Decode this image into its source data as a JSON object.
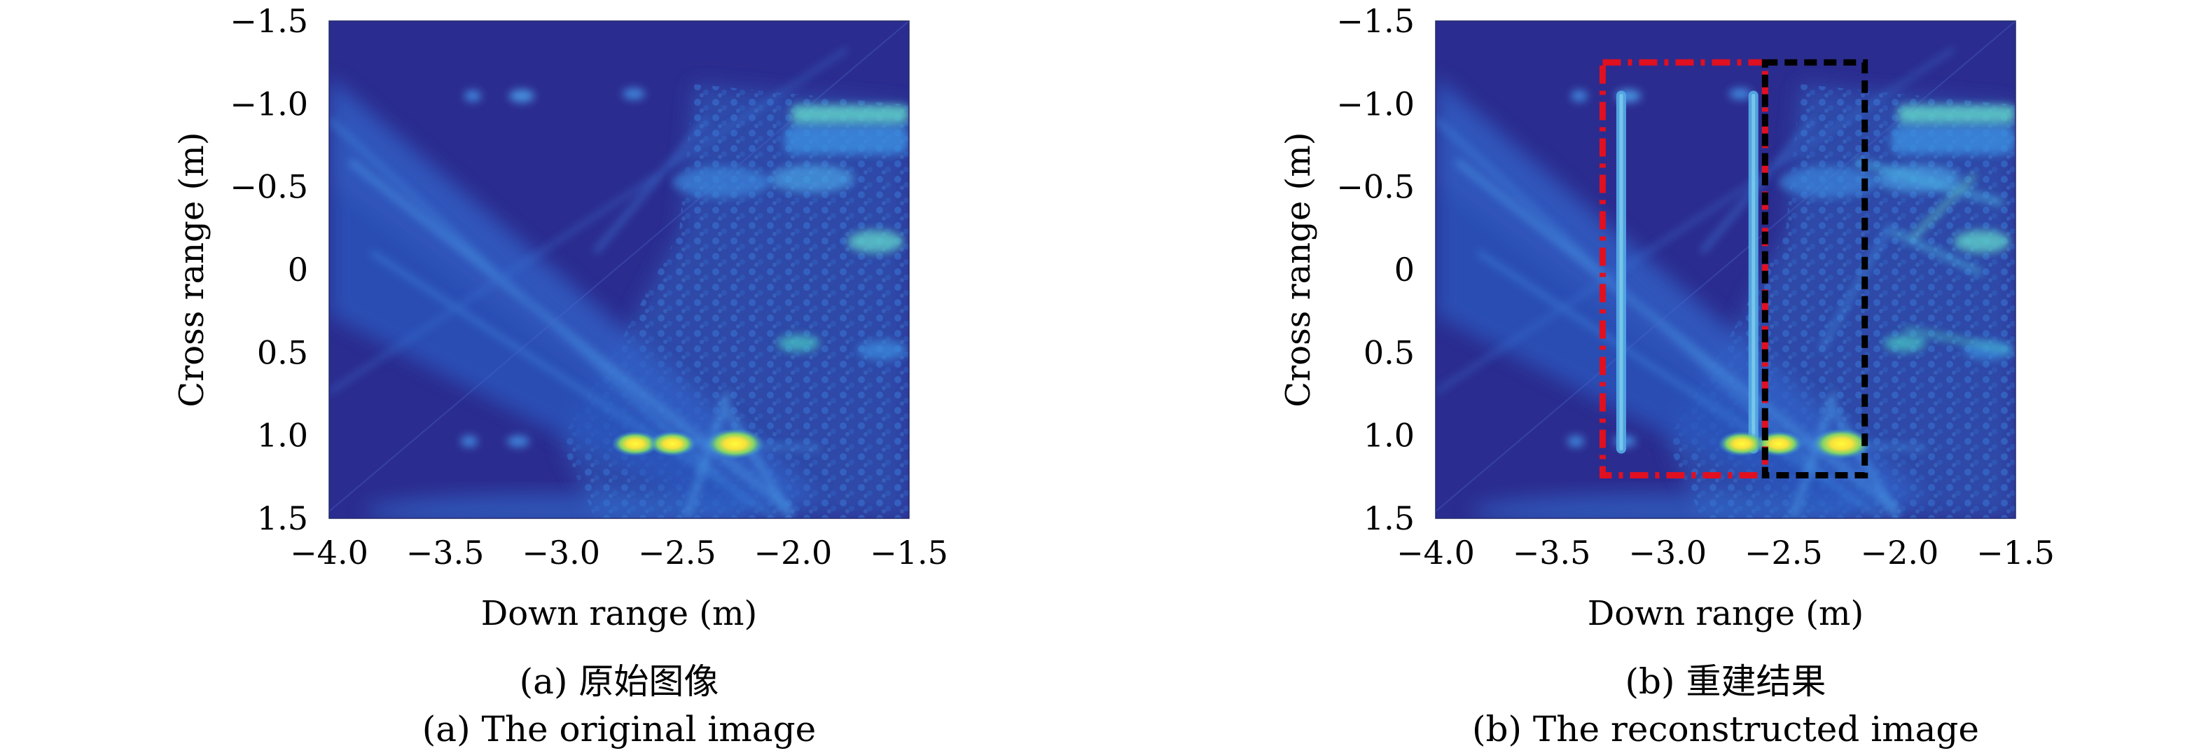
{
  "figure": {
    "panels": [
      {
        "caption_zh": "(a) 原始图像",
        "caption_en": "(a) The original image"
      },
      {
        "caption_zh": "(b) 重建结果",
        "caption_en": "(b) The reconstructed image"
      }
    ]
  },
  "chart_data": [
    {
      "type": "heatmap",
      "title": "",
      "xlabel": "Down range (m)",
      "ylabel": "Cross range (m)",
      "xlim": [
        -4.0,
        -1.5
      ],
      "ylim": [
        -1.5,
        1.5
      ],
      "y_axis_direction": "reversed (-1.5 at top, 1.5 at bottom)",
      "x_ticks": [
        -4.0,
        -3.5,
        -3.0,
        -2.5,
        -2.0,
        -1.5
      ],
      "x_tick_labels": [
        "−4.0",
        "−3.5",
        "−3.0",
        "−2.5",
        "−2.0",
        "−1.5"
      ],
      "y_ticks": [
        -1.5,
        -1.0,
        -0.5,
        0,
        0.5,
        1.0,
        1.5
      ],
      "y_tick_labels": [
        "−1.5",
        "−1.0",
        "−0.5",
        "0",
        "0.5",
        "1.0",
        "1.5"
      ],
      "colormap": "parula",
      "colors": {
        "background": "#2b2c8f",
        "mid": "#1f7fd6",
        "high": "#f9e23a"
      },
      "bright_targets": [
        {
          "x": -2.68,
          "y": 1.05
        },
        {
          "x": -2.52,
          "y": 1.05
        },
        {
          "x": -2.25,
          "y": 1.05
        }
      ],
      "annotations": []
    },
    {
      "type": "heatmap",
      "title": "",
      "xlabel": "Down range (m)",
      "ylabel": "Cross range (m)",
      "xlim": [
        -4.0,
        -1.5
      ],
      "ylim": [
        -1.5,
        1.5
      ],
      "y_axis_direction": "reversed (-1.5 at top, 1.5 at bottom)",
      "x_ticks": [
        -4.0,
        -3.5,
        -3.0,
        -2.5,
        -2.0,
        -1.5
      ],
      "x_tick_labels": [
        "−4.0",
        "−3.5",
        "−3.0",
        "−2.5",
        "−2.0",
        "−1.5"
      ],
      "y_ticks": [
        -1.5,
        -1.0,
        -0.5,
        0,
        0.5,
        1.0,
        1.5
      ],
      "y_tick_labels": [
        "−1.5",
        "−1.0",
        "−0.5",
        "0",
        "0.5",
        "1.0",
        "1.5"
      ],
      "colormap": "parula",
      "colors": {
        "background": "#2b2c8f",
        "mid": "#1f7fd6",
        "high": "#f9e23a"
      },
      "bright_targets": [
        {
          "x": -2.68,
          "y": 1.05
        },
        {
          "x": -2.52,
          "y": 1.05
        },
        {
          "x": -2.25,
          "y": 1.05
        }
      ],
      "reconstructed_lines": [
        {
          "x": -3.2,
          "y_from": -1.05,
          "y_to": 1.08
        },
        {
          "x": -2.63,
          "y_from": -1.05,
          "y_to": 1.08
        }
      ],
      "annotations": [
        {
          "shape": "rectangle",
          "style": "dash-dot",
          "color": "#e01020",
          "x_from": -3.28,
          "x_to": -2.58,
          "y_from": -1.25,
          "y_to": 1.24
        },
        {
          "shape": "rectangle",
          "style": "dashed",
          "color": "#000000",
          "x_from": -2.58,
          "x_to": -2.15,
          "y_from": -1.25,
          "y_to": 1.24
        }
      ]
    }
  ]
}
